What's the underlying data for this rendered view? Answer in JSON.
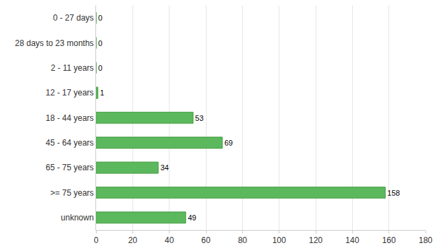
{
  "chart_data": {
    "type": "bar",
    "orientation": "horizontal",
    "categories": [
      "0 - 27 days",
      "28 days to 23 months",
      "2 - 11 years",
      "12 - 17 years",
      "18 - 44 years",
      "45 - 64 years",
      "65 - 75 years",
      ">= 75 years",
      "unknown"
    ],
    "values": [
      0,
      0,
      0,
      1,
      53,
      69,
      34,
      158,
      49
    ],
    "color": "#5cb85c",
    "xlim": [
      0,
      180
    ],
    "xticks": [
      0,
      20,
      40,
      60,
      80,
      100,
      120,
      140,
      160,
      180
    ],
    "grid": true,
    "data_labels": true
  }
}
